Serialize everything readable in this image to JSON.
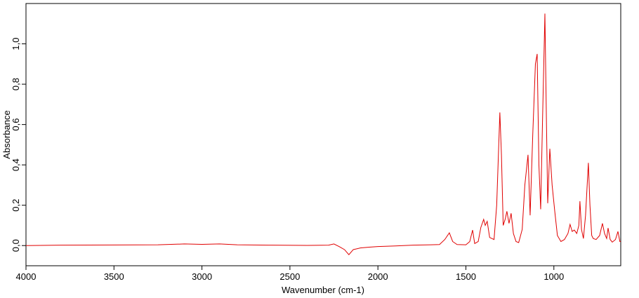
{
  "chart_data": {
    "type": "line",
    "x_label": "Wavenumber (cm-1)",
    "y_label": "Absorbance",
    "xlim": [
      4000,
      620
    ],
    "ylim": [
      -0.1,
      1.2
    ],
    "xticks": [
      4000,
      3500,
      3000,
      2500,
      2000,
      1500,
      1000
    ],
    "yticks": [
      {
        "value": 0.0,
        "label": "0,0"
      },
      {
        "value": 0.2,
        "label": "0,2"
      },
      {
        "value": 0.4,
        "label": "0,4"
      },
      {
        "value": 0.6,
        "label": "0,6"
      },
      {
        "value": 0.8,
        "label": "0,8"
      },
      {
        "value": 1.0,
        "label": "1,0"
      }
    ],
    "series": [
      {
        "color": "#e00000",
        "x": [
          4000,
          3800,
          3500,
          3250,
          3100,
          3000,
          2900,
          2800,
          2600,
          2400,
          2280,
          2250,
          2220,
          2190,
          2165,
          2140,
          2100,
          2050,
          2000,
          1900,
          1800,
          1700,
          1650,
          1620,
          1594,
          1575,
          1550,
          1500,
          1478,
          1462,
          1450,
          1430,
          1415,
          1399,
          1390,
          1379,
          1365,
          1340,
          1325,
          1307,
          1298,
          1288,
          1277,
          1267,
          1255,
          1243,
          1230,
          1215,
          1200,
          1180,
          1165,
          1147,
          1135,
          1120,
          1105,
          1095,
          1085,
          1075,
          1065,
          1051,
          1042,
          1035,
          1023,
          1010,
          995,
          980,
          960,
          940,
          920,
          908,
          896,
          884,
          870,
          858,
          852,
          843,
          832,
          820,
          804,
          795,
          785,
          776,
          760,
          740,
          724,
          712,
          700,
          692,
          680,
          668,
          650,
          636,
          625,
          620
        ],
        "values": [
          0.0,
          0.002,
          0.003,
          0.004,
          0.008,
          0.006,
          0.008,
          0.004,
          0.002,
          0.001,
          0.002,
          0.008,
          -0.005,
          -0.02,
          -0.045,
          -0.02,
          -0.012,
          -0.008,
          -0.005,
          -0.002,
          0.002,
          0.004,
          0.005,
          0.03,
          0.063,
          0.02,
          0.005,
          0.004,
          0.02,
          0.077,
          0.01,
          0.02,
          0.09,
          0.13,
          0.1,
          0.12,
          0.04,
          0.03,
          0.2,
          0.66,
          0.45,
          0.1,
          0.13,
          0.17,
          0.11,
          0.16,
          0.06,
          0.02,
          0.015,
          0.08,
          0.3,
          0.45,
          0.15,
          0.55,
          0.9,
          0.95,
          0.4,
          0.18,
          0.6,
          1.15,
          0.6,
          0.21,
          0.48,
          0.3,
          0.17,
          0.05,
          0.02,
          0.03,
          0.06,
          0.105,
          0.07,
          0.077,
          0.06,
          0.1,
          0.22,
          0.08,
          0.035,
          0.15,
          0.41,
          0.2,
          0.05,
          0.035,
          0.03,
          0.05,
          0.11,
          0.06,
          0.035,
          0.087,
          0.03,
          0.017,
          0.03,
          0.07,
          0.02,
          0.02
        ]
      }
    ]
  }
}
